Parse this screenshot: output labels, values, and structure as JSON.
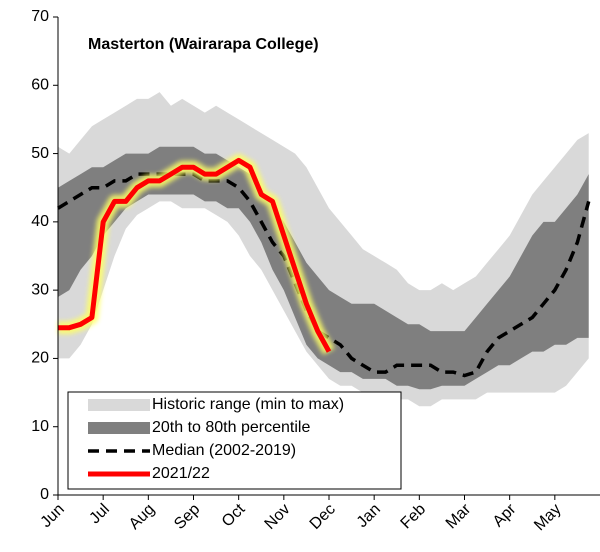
{
  "chart_data": {
    "type": "band-line",
    "title": "Masterton (Wairarapa College)",
    "categories": [
      "Jun",
      null,
      null,
      null,
      "Jul",
      null,
      null,
      null,
      "Aug",
      null,
      null,
      null,
      "Sep",
      null,
      null,
      null,
      "Oct",
      null,
      null,
      null,
      "Nov",
      null,
      null,
      null,
      "Dec",
      null,
      null,
      null,
      "Jan",
      null,
      null,
      null,
      "Feb",
      null,
      null,
      null,
      "Mar",
      null,
      null,
      null,
      "Apr",
      null,
      null,
      null,
      "May",
      null,
      null,
      null
    ],
    "ylim": [
      0,
      70
    ],
    "yticks": [
      0,
      10,
      20,
      30,
      40,
      50,
      60,
      70
    ],
    "grid": false,
    "legend": "lower-left",
    "series": [
      {
        "name": "Historic range (min to max)",
        "kind": "band",
        "color": "#d9d9d9",
        "upper": [
          51,
          50,
          52,
          54,
          55,
          56,
          57,
          58,
          58,
          59,
          57,
          58,
          57,
          56,
          57,
          56,
          55,
          54,
          53,
          52,
          51,
          50,
          48,
          45,
          42,
          40,
          38,
          36,
          35,
          34,
          33,
          31,
          30,
          30,
          31,
          30,
          31,
          32,
          34,
          36,
          38,
          41,
          44,
          46,
          48,
          50,
          52,
          53
        ],
        "lower": [
          20,
          20,
          22,
          25,
          30,
          35,
          39,
          41,
          42,
          43,
          43,
          42,
          42,
          42,
          41,
          40,
          38,
          35,
          33,
          30,
          27,
          24,
          21,
          19,
          17,
          16,
          16,
          15,
          15,
          15,
          14,
          14,
          13,
          13,
          14,
          14,
          14,
          14,
          15,
          15,
          15,
          15,
          15,
          15,
          15,
          16,
          18,
          20
        ]
      },
      {
        "name": "20th to 80th percentile",
        "kind": "band",
        "color": "#7f7f7f",
        "upper": [
          45,
          46,
          47,
          48,
          48,
          49,
          50,
          50,
          50,
          51,
          51,
          51,
          51,
          50,
          50,
          49,
          48,
          47,
          45,
          42,
          40,
          37,
          34,
          32,
          30,
          29,
          28,
          28,
          28,
          27,
          26,
          25,
          25,
          24,
          24,
          24,
          24,
          26,
          28,
          30,
          32,
          35,
          38,
          40,
          40,
          42,
          44,
          47
        ],
        "lower": [
          29,
          30,
          33,
          35,
          38,
          40,
          42,
          43,
          44,
          44,
          44,
          44,
          44,
          43,
          43,
          42,
          42,
          40,
          37,
          33,
          30,
          26,
          22,
          20,
          19,
          18,
          18,
          17,
          17,
          17,
          16,
          16,
          15.5,
          15.5,
          16,
          16,
          16,
          17,
          18,
          19,
          19,
          20,
          21,
          21,
          22,
          22,
          23,
          23
        ]
      },
      {
        "name": "Median (2002-2019)",
        "kind": "dashed",
        "color": "#000000",
        "values": [
          42,
          43,
          44,
          45,
          45,
          46,
          46,
          47,
          47,
          47,
          47,
          47,
          47,
          46,
          46,
          46,
          45,
          43,
          40,
          37,
          35,
          31,
          27,
          24,
          23,
          22,
          20,
          19,
          18,
          18,
          19,
          19,
          19,
          19,
          18,
          18,
          17.5,
          18,
          21,
          23,
          24,
          25,
          26,
          28,
          30,
          33,
          37,
          43
        ]
      },
      {
        "name": "2021/22",
        "kind": "line",
        "color": "#ff0000",
        "glow": "#ffff66",
        "values": [
          24.5,
          24.5,
          25,
          26,
          40,
          43,
          43,
          45,
          46,
          46,
          47,
          48,
          48,
          47,
          47,
          48,
          49,
          48,
          44,
          43,
          38,
          33,
          28,
          24,
          21,
          null,
          null,
          null,
          null,
          null,
          null,
          null,
          null,
          null,
          null,
          null,
          null,
          null,
          null,
          null,
          null,
          null,
          null,
          null,
          null,
          null,
          null,
          null
        ]
      }
    ]
  }
}
